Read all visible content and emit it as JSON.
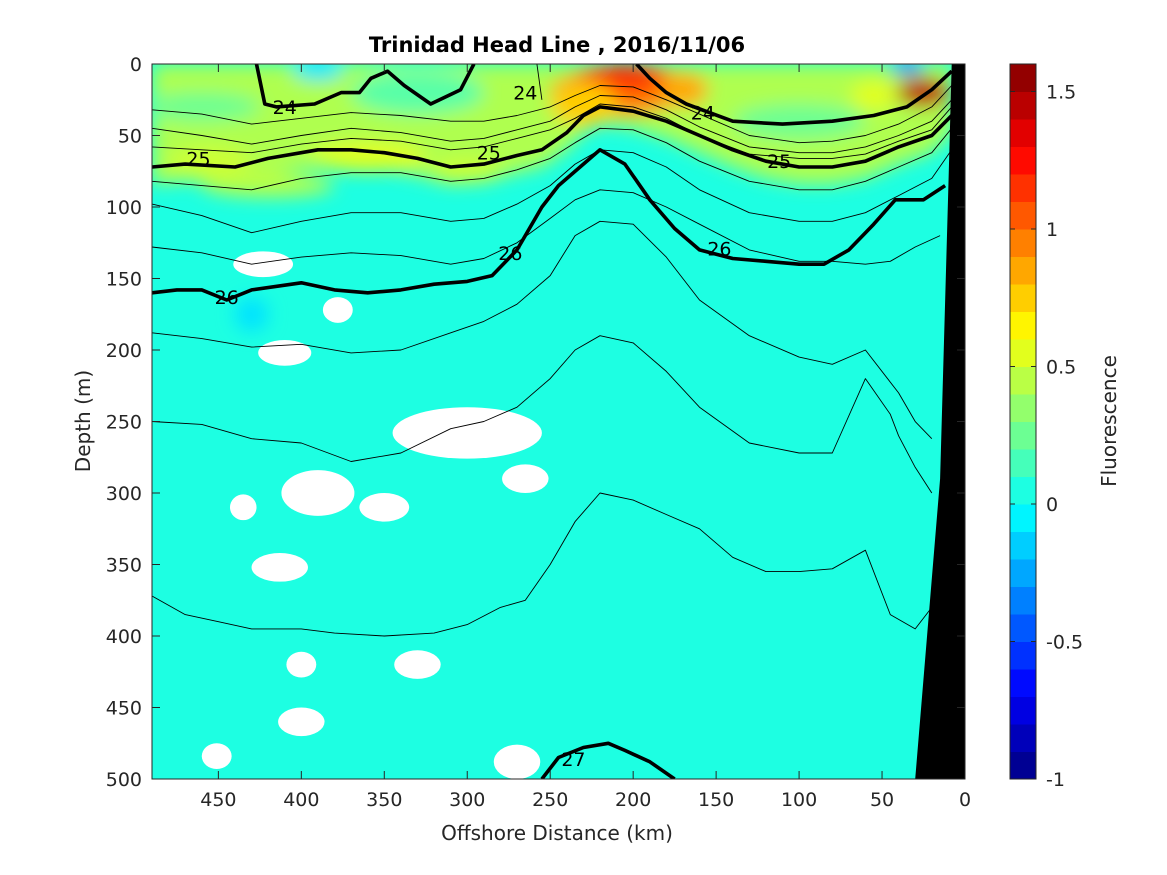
{
  "chart_data": {
    "type": "heatmap",
    "title": "Trinidad Head Line , 2016/11/06",
    "xlabel": "Offshore Distance (km)",
    "ylabel": "Depth (m)",
    "xlim": [
      490,
      0
    ],
    "ylim": [
      0,
      500
    ],
    "x_ticks": [
      450,
      400,
      350,
      300,
      250,
      200,
      150,
      100,
      50,
      0
    ],
    "y_ticks": [
      0,
      50,
      100,
      150,
      200,
      250,
      300,
      350,
      400,
      450,
      500
    ],
    "colorbar": {
      "label": "Fluorescence",
      "range": [
        -1,
        1.6
      ],
      "ticks": [
        -1,
        -0.5,
        0,
        0.5,
        1,
        1.5
      ],
      "levels": 26,
      "colormap": "jet"
    },
    "contour_labels": [
      {
        "text": "24",
        "x": 410,
        "y": 30
      },
      {
        "text": "24",
        "x": 265,
        "y": 20
      },
      {
        "text": "24",
        "x": 158,
        "y": 34
      },
      {
        "text": "25",
        "x": 462,
        "y": 66
      },
      {
        "text": "25",
        "x": 287,
        "y": 62
      },
      {
        "text": "25",
        "x": 112,
        "y": 68
      },
      {
        "text": "26",
        "x": 445,
        "y": 163
      },
      {
        "text": "26",
        "x": 274,
        "y": 132
      },
      {
        "text": "26",
        "x": 148,
        "y": 129
      },
      {
        "text": "27",
        "x": 236,
        "y": 486
      }
    ],
    "bold_isopycnals": [
      {
        "name": "24",
        "x": [
          427,
          422,
          415,
          392,
          376,
          365,
          358,
          348,
          338,
          322,
          304,
          296
        ],
        "y": [
          0,
          28,
          30,
          28,
          20,
          20,
          10,
          5,
          15,
          28,
          18,
          0
        ]
      },
      {
        "name": "24",
        "x": [
          198,
          190,
          180,
          168,
          140,
          110,
          80,
          55,
          35,
          20,
          8
        ],
        "y": [
          0,
          10,
          20,
          28,
          40,
          42,
          40,
          36,
          30,
          18,
          5
        ]
      },
      {
        "name": "25",
        "x": [
          490,
          470,
          440,
          420,
          390,
          370,
          350,
          330,
          310,
          290,
          270,
          255,
          240,
          230,
          220,
          200,
          180,
          160,
          140,
          120,
          100,
          80,
          60,
          40,
          20,
          8
        ],
        "y": [
          72,
          70,
          72,
          66,
          60,
          60,
          62,
          66,
          72,
          70,
          64,
          60,
          48,
          36,
          30,
          33,
          40,
          50,
          60,
          68,
          72,
          72,
          68,
          58,
          50,
          36
        ]
      },
      {
        "name": "26",
        "x": [
          490,
          475,
          460,
          445,
          430,
          400,
          380,
          360,
          340,
          320,
          300,
          285,
          270,
          255,
          245,
          230,
          220,
          205,
          190,
          175,
          160,
          140,
          120,
          100,
          85,
          70,
          55,
          42,
          25,
          12
        ],
        "y": [
          160,
          158,
          158,
          165,
          158,
          153,
          158,
          160,
          158,
          154,
          152,
          148,
          130,
          100,
          85,
          70,
          60,
          70,
          95,
          115,
          130,
          136,
          138,
          140,
          140,
          130,
          112,
          95,
          95,
          85
        ]
      },
      {
        "name": "27",
        "x": [
          255,
          245,
          230,
          215,
          205,
          190,
          175
        ],
        "y": [
          500,
          485,
          478,
          475,
          480,
          488,
          500
        ]
      }
    ],
    "thin_isopycnals": [
      {
        "x": [
          258,
          255
        ],
        "y": [
          0,
          25
        ]
      },
      {
        "x": [
          490,
          460,
          430,
          400,
          370,
          340,
          310,
          290,
          270,
          250,
          235,
          220,
          200,
          180,
          160,
          130,
          100,
          80,
          60,
          40,
          20,
          8
        ],
        "y": [
          32,
          35,
          42,
          38,
          34,
          36,
          40,
          40,
          36,
          30,
          22,
          15,
          16,
          25,
          35,
          50,
          55,
          54,
          50,
          42,
          30,
          15
        ]
      },
      {
        "x": [
          490,
          460,
          430,
          400,
          370,
          340,
          310,
          290,
          270,
          250,
          235,
          220,
          200,
          180,
          160,
          130,
          100,
          80,
          60,
          40,
          20,
          8
        ],
        "y": [
          45,
          50,
          56,
          50,
          45,
          48,
          54,
          52,
          46,
          40,
          30,
          22,
          23,
          32,
          44,
          58,
          62,
          62,
          58,
          50,
          40,
          25
        ]
      },
      {
        "x": [
          490,
          460,
          430,
          400,
          370,
          340,
          310,
          290,
          270,
          250,
          235,
          220,
          200,
          180,
          160,
          130,
          100,
          80,
          60,
          40,
          20,
          8
        ],
        "y": [
          58,
          60,
          62,
          56,
          52,
          54,
          60,
          58,
          52,
          46,
          38,
          28,
          30,
          38,
          50,
          63,
          66,
          66,
          63,
          54,
          46,
          30
        ]
      },
      {
        "x": [
          490,
          460,
          430,
          400,
          370,
          340,
          310,
          290,
          270,
          250,
          235,
          220,
          200,
          180,
          160,
          130,
          100,
          80,
          60,
          40,
          20,
          8
        ],
        "y": [
          82,
          85,
          88,
          80,
          76,
          76,
          82,
          80,
          74,
          66,
          55,
          45,
          46,
          55,
          68,
          82,
          88,
          88,
          82,
          72,
          62,
          45
        ]
      },
      {
        "x": [
          490,
          460,
          430,
          400,
          370,
          340,
          310,
          290,
          270,
          250,
          235,
          220,
          200,
          180,
          160,
          130,
          100,
          80,
          60,
          40,
          20,
          8
        ],
        "y": [
          98,
          106,
          118,
          110,
          104,
          104,
          110,
          108,
          98,
          85,
          70,
          60,
          62,
          72,
          88,
          104,
          110,
          110,
          104,
          92,
          80,
          60
        ]
      },
      {
        "x": [
          490,
          460,
          430,
          400,
          370,
          340,
          310,
          290,
          270,
          250,
          235,
          220,
          200,
          180,
          160,
          130,
          100,
          80,
          60,
          45,
          30,
          15
        ],
        "y": [
          128,
          132,
          140,
          135,
          132,
          134,
          140,
          136,
          125,
          108,
          95,
          88,
          90,
          100,
          112,
          130,
          138,
          138,
          140,
          138,
          128,
          120
        ]
      },
      {
        "x": [
          490,
          460,
          430,
          400,
          370,
          340,
          310,
          290,
          270,
          250,
          235,
          220,
          200,
          180,
          160,
          130,
          100,
          80,
          60,
          40,
          30,
          20
        ],
        "y": [
          188,
          192,
          198,
          196,
          202,
          200,
          188,
          180,
          168,
          148,
          120,
          110,
          112,
          135,
          165,
          190,
          205,
          210,
          200,
          230,
          250,
          262
        ]
      },
      {
        "x": [
          490,
          460,
          430,
          400,
          370,
          340,
          310,
          290,
          270,
          250,
          235,
          220,
          200,
          180,
          160,
          130,
          100,
          80,
          60,
          45,
          40,
          30,
          20
        ],
        "y": [
          250,
          252,
          262,
          265,
          278,
          272,
          255,
          250,
          240,
          220,
          200,
          190,
          195,
          215,
          240,
          265,
          272,
          272,
          220,
          245,
          260,
          282,
          300
        ]
      },
      {
        "x": [
          490,
          470,
          450,
          430,
          400,
          380,
          350,
          320,
          300,
          280,
          265,
          250,
          235,
          220,
          200,
          180,
          160,
          140,
          120,
          100,
          80,
          60,
          45,
          30,
          20
        ],
        "y": [
          372,
          385,
          390,
          395,
          395,
          398,
          400,
          398,
          392,
          380,
          375,
          350,
          320,
          300,
          305,
          315,
          325,
          345,
          355,
          355,
          353,
          340,
          385,
          395,
          380
        ]
      }
    ],
    "white_blanks": [
      {
        "x": 423,
        "y": 140,
        "rx": 18,
        "ry": 9
      },
      {
        "x": 378,
        "y": 172,
        "rx": 9,
        "ry": 9
      },
      {
        "x": 410,
        "y": 202,
        "rx": 16,
        "ry": 9
      },
      {
        "x": 300,
        "y": 258,
        "rx": 45,
        "ry": 18
      },
      {
        "x": 390,
        "y": 300,
        "rx": 22,
        "ry": 16
      },
      {
        "x": 265,
        "y": 290,
        "rx": 14,
        "ry": 10
      },
      {
        "x": 350,
        "y": 310,
        "rx": 15,
        "ry": 10
      },
      {
        "x": 435,
        "y": 310,
        "rx": 8,
        "ry": 9
      },
      {
        "x": 413,
        "y": 352,
        "rx": 17,
        "ry": 10
      },
      {
        "x": 400,
        "y": 420,
        "rx": 9,
        "ry": 9
      },
      {
        "x": 330,
        "y": 420,
        "rx": 14,
        "ry": 10
      },
      {
        "x": 400,
        "y": 460,
        "rx": 14,
        "ry": 10
      },
      {
        "x": 451,
        "y": 484,
        "rx": 9,
        "ry": 9
      },
      {
        "x": 270,
        "y": 488,
        "rx": 14,
        "ry": 12
      }
    ]
  }
}
